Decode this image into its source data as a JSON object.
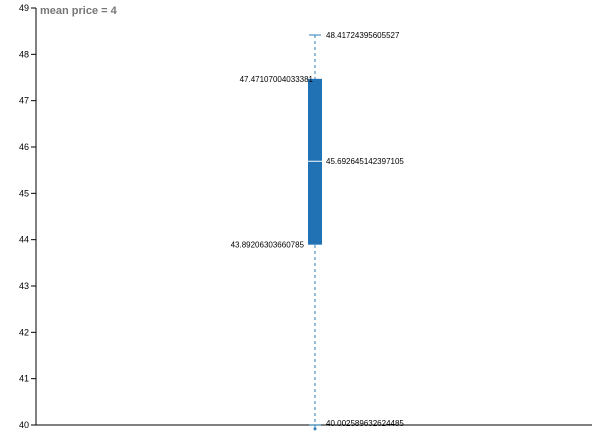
{
  "chart_data": {
    "type": "boxplot",
    "title": "mean price = 4",
    "ylim": [
      40,
      49
    ],
    "y_ticks": [
      "40",
      "41",
      "42",
      "43",
      "44",
      "45",
      "46",
      "47",
      "48",
      "49"
    ],
    "boxes": [
      {
        "max": 48.41724395605527,
        "q3": 47.47107004033381,
        "median": 45.692645142397105,
        "q1": 43.89206303660785,
        "min": 40.002589632624485,
        "labels": {
          "max": "48.41724395605527",
          "q3": "47.47107004033381",
          "median": "45.692645142397105",
          "q1": "43.89206303660785",
          "min": "40.002589632624485"
        }
      }
    ],
    "grid": false,
    "colors": {
      "box": "#2171b5",
      "whisker": "#2c7fb8",
      "title": "#777777"
    }
  }
}
